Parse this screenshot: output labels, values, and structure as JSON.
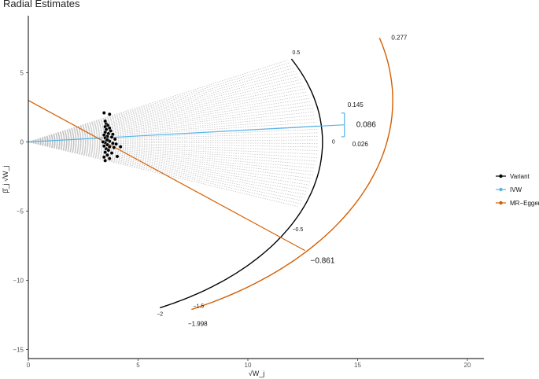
{
  "chart_data": {
    "type": "scatter",
    "title": "Radial Estimates",
    "xlabel": "√W_j",
    "ylabel": "β̂_j √W_j",
    "xlim": [
      0,
      21
    ],
    "ylim": [
      -15.5,
      7.5
    ],
    "xticks": [
      "0",
      "5",
      "10",
      "15",
      "20"
    ],
    "yticks": [
      "5",
      "0",
      "−5",
      "−10",
      "−15"
    ],
    "legend": {
      "placement": "right",
      "items": [
        {
          "label": "Variant",
          "color": "#000000"
        },
        {
          "label": "IVW",
          "color": "#56B4E9"
        },
        {
          "label": "MR−Egger",
          "color": "#D55E00"
        }
      ]
    },
    "series": [
      {
        "name": "Variant",
        "points": [
          [
            3.45,
            2.1
          ],
          [
            3.7,
            2.0
          ],
          [
            3.5,
            1.5
          ],
          [
            3.55,
            1.3
          ],
          [
            3.62,
            1.2
          ],
          [
            3.5,
            1.1
          ],
          [
            3.7,
            1.0
          ],
          [
            3.55,
            0.9
          ],
          [
            3.75,
            0.8
          ],
          [
            3.5,
            0.7
          ],
          [
            3.65,
            0.6
          ],
          [
            3.85,
            0.55
          ],
          [
            3.45,
            0.5
          ],
          [
            3.6,
            0.4
          ],
          [
            3.8,
            0.35
          ],
          [
            3.5,
            0.3
          ],
          [
            3.95,
            0.2
          ],
          [
            3.55,
            0.1
          ],
          [
            3.7,
            0.05
          ],
          [
            3.5,
            -0.05
          ],
          [
            3.85,
            -0.1
          ],
          [
            3.6,
            -0.2
          ],
          [
            4.0,
            -0.15
          ],
          [
            3.45,
            -0.3
          ],
          [
            3.7,
            -0.35
          ],
          [
            3.9,
            -0.4
          ],
          [
            3.55,
            -0.5
          ],
          [
            4.2,
            -0.35
          ],
          [
            3.65,
            -0.6
          ],
          [
            3.5,
            -0.75
          ],
          [
            3.8,
            -0.8
          ],
          [
            3.6,
            -0.95
          ],
          [
            3.45,
            -1.1
          ],
          [
            4.05,
            -1.05
          ],
          [
            3.7,
            -1.2
          ],
          [
            3.5,
            -1.35
          ],
          [
            3.6,
            0.15
          ],
          [
            3.4,
            0.0
          ]
        ]
      }
    ],
    "ivw": {
      "estimate": "0.086",
      "ci_upper": "0.145",
      "ci_lower": "0.026",
      "slope": 0.086,
      "length": 14.4
    },
    "egger": {
      "estimate": "−0.861",
      "intercept": 3.0,
      "slope": -0.861,
      "end_x": 12.6
    },
    "variant_scale": {
      "radius": 13.4,
      "labels": [
        "0.5",
        "0",
        "−0.5",
        "−2"
      ],
      "label_values": [
        0.5,
        0,
        -0.5,
        -2
      ],
      "range": [
        -2,
        0.5
      ]
    },
    "egger_scale": {
      "labels": [
        "0.277",
        "−1.5",
        "−1.998"
      ],
      "range": [
        -1.998,
        0.277
      ]
    }
  }
}
